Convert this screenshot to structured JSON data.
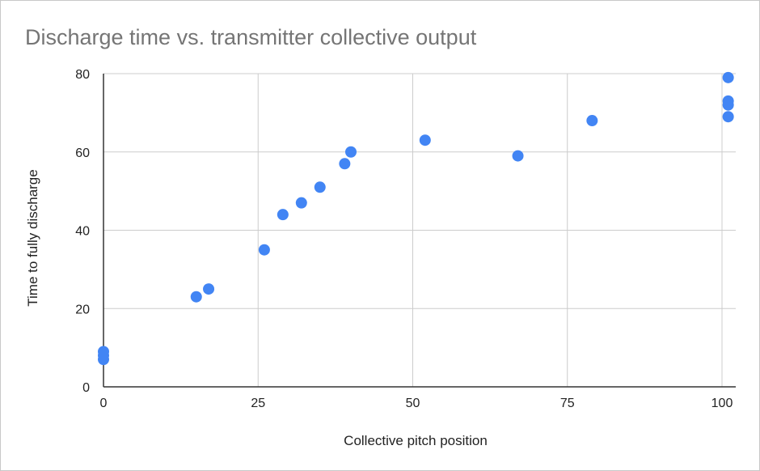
{
  "chart_data": {
    "type": "scatter",
    "title": "Discharge time vs. transmitter collective output",
    "xlabel": "Collective pitch position",
    "ylabel": "Time to fully discharge",
    "xlim": [
      0,
      101
    ],
    "ylim": [
      0,
      80
    ],
    "x_ticks": [
      0,
      25,
      50,
      75,
      100
    ],
    "y_ticks": [
      0,
      20,
      40,
      60,
      80
    ],
    "x_tick_labels": [
      "0",
      "25",
      "50",
      "75",
      "100"
    ],
    "y_tick_labels": [
      "0",
      "20",
      "40",
      "60",
      "80"
    ],
    "grid": true,
    "legend": "none",
    "point_color": "#4285f4",
    "points": [
      {
        "x": 0,
        "y": 7
      },
      {
        "x": 0,
        "y": 8
      },
      {
        "x": 0,
        "y": 9
      },
      {
        "x": 15,
        "y": 23
      },
      {
        "x": 17,
        "y": 25
      },
      {
        "x": 26,
        "y": 35
      },
      {
        "x": 29,
        "y": 44
      },
      {
        "x": 32,
        "y": 47
      },
      {
        "x": 35,
        "y": 51
      },
      {
        "x": 39,
        "y": 57
      },
      {
        "x": 40,
        "y": 60
      },
      {
        "x": 52,
        "y": 63
      },
      {
        "x": 67,
        "y": 59
      },
      {
        "x": 79,
        "y": 68
      },
      {
        "x": 101,
        "y": 69
      },
      {
        "x": 101,
        "y": 72
      },
      {
        "x": 101,
        "y": 73
      },
      {
        "x": 101,
        "y": 79
      }
    ]
  }
}
